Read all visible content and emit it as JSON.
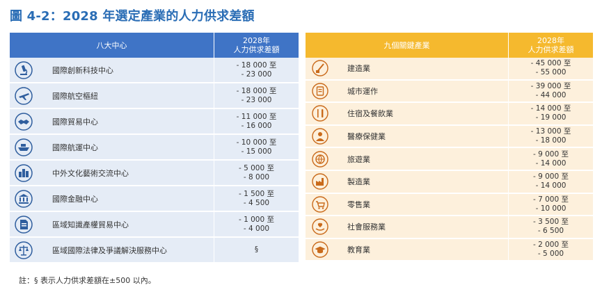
{
  "title": "圖 4-2：2028 年選定產業的人力供求差額",
  "colors": {
    "title": "#2a6db5",
    "left_header": "#3f74c6",
    "left_row": "#e5ecf6",
    "right_header": "#f5b92e",
    "right_row": "#fdf0dc",
    "left_icon": "#2f5e9e",
    "right_icon": "#c96a1b"
  },
  "left_table": {
    "header_col1": "八大中心",
    "header_col2_line1": "2028年",
    "header_col2_line2": "人力供求差額",
    "rows": [
      {
        "icon": "microscope-icon",
        "label": "國際創新科技中心",
        "v1": "- 18 000 至",
        "v2": "- 23 000"
      },
      {
        "icon": "airplane-icon",
        "label": "國際航空樞紐",
        "v1": "- 18 000 至",
        "v2": "- 23 000"
      },
      {
        "icon": "handshake-icon",
        "label": "國際貿易中心",
        "v1": "- 11 000 至",
        "v2": "- 16 000"
      },
      {
        "icon": "ship-icon",
        "label": "國際航運中心",
        "v1": "- 10 000 至",
        "v2": "- 15 000"
      },
      {
        "icon": "cityscape-icon",
        "label": "中外文化藝術交流中心",
        "v1": "- 5 000 至",
        "v2": "- 8 000"
      },
      {
        "icon": "bank-icon",
        "label": "國際金融中心",
        "v1": "- 1 500 至",
        "v2": "- 4 500"
      },
      {
        "icon": "document-icon",
        "label": "區域知識產權貿易中心",
        "v1": "- 1 000 至",
        "v2": "- 4 000"
      },
      {
        "icon": "scales-icon",
        "label": "區域國際法律及爭議解決服務中心",
        "v1": "§",
        "v2": ""
      }
    ]
  },
  "right_table": {
    "header_col1": "九個關鍵產業",
    "header_col2_line1": "2028年",
    "header_col2_line2": "人力供求差額",
    "rows": [
      {
        "icon": "construction-icon",
        "label": "建造業",
        "v1": "- 45 000 至",
        "v2": "- 55 000"
      },
      {
        "icon": "clipboard-icon",
        "label": "城市運作",
        "v1": "- 39 000 至",
        "v2": "- 44 000"
      },
      {
        "icon": "cutlery-icon",
        "label": "住宿及餐飲業",
        "v1": "- 14 000 至",
        "v2": "- 19 000"
      },
      {
        "icon": "medical-icon",
        "label": "醫療保健業",
        "v1": "- 13 000 至",
        "v2": "- 18 000"
      },
      {
        "icon": "globe-icon",
        "label": "旅遊業",
        "v1": "- 9 000 至",
        "v2": "- 14 000"
      },
      {
        "icon": "factory-icon",
        "label": "製造業",
        "v1": "- 9 000 至",
        "v2": "- 14 000"
      },
      {
        "icon": "shopping-cart-icon",
        "label": "零售業",
        "v1": "- 7 000 至",
        "v2": "- 10 000"
      },
      {
        "icon": "care-hands-icon",
        "label": "社會服務業",
        "v1": "- 3 500 至",
        "v2": "- 6 500"
      },
      {
        "icon": "graduation-cap-icon",
        "label": "教育業",
        "v1": "- 2 000 至",
        "v2": "- 5 000"
      }
    ]
  },
  "note": "註：§ 表示人力供求差額在±500 以內。"
}
